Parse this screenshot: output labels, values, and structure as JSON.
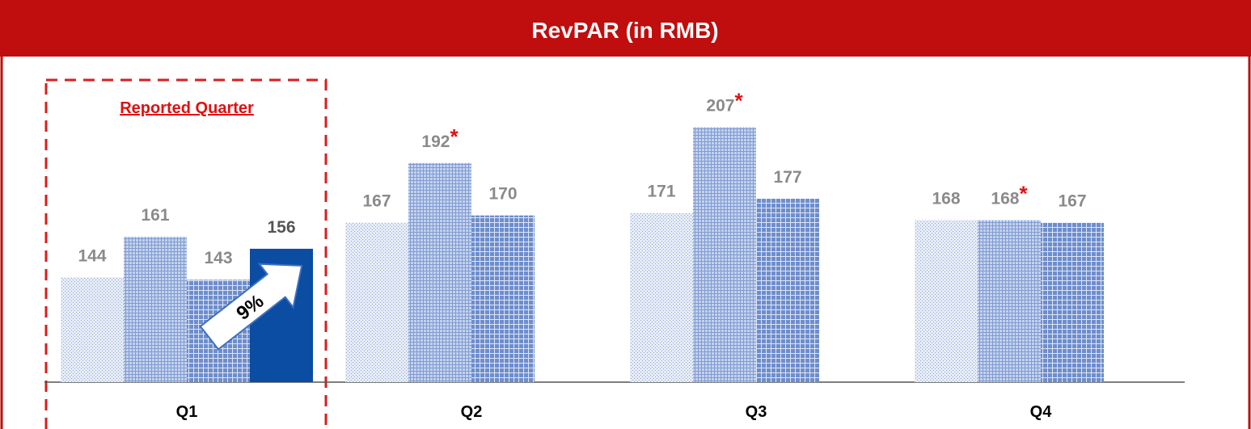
{
  "chart_data": {
    "type": "bar",
    "title": "RevPAR (in RMB)",
    "categories": [
      "Q1",
      "Q2",
      "Q3",
      "Q4"
    ],
    "series": [
      {
        "color": "#c3d0e8",
        "values": [
          144,
          167,
          171,
          168
        ]
      },
      {
        "color": "#9db3de",
        "values": [
          161,
          192,
          207,
          168
        ],
        "value_labels": [
          "161",
          "192*",
          "207*",
          "168*"
        ]
      },
      {
        "color": "#7b98d3",
        "values": [
          143,
          170,
          177,
          167
        ]
      },
      {
        "color": "#0a4da2",
        "values": [
          156,
          null,
          null,
          null
        ]
      }
    ],
    "ylim": [
      100,
      215
    ],
    "annotations": {
      "highlight": "Reported Quarter",
      "growth": "9%"
    }
  }
}
